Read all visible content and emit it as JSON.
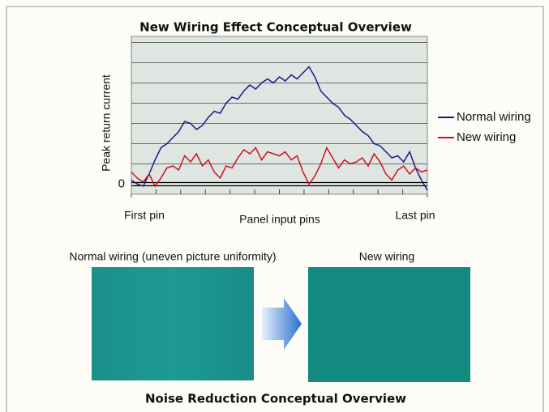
{
  "chart_data": {
    "type": "line",
    "title": "New Wiring Effect Conceptual Overview",
    "y_label": "Peak return current",
    "x_label": "Panel input pins",
    "x": [
      0,
      2,
      4,
      6,
      8,
      10,
      12,
      14,
      16,
      18,
      20,
      22,
      24,
      26,
      28,
      30,
      32,
      34,
      36,
      38,
      40,
      42,
      44,
      46,
      48,
      50,
      52,
      54,
      56,
      58,
      60,
      62,
      64,
      66,
      68,
      70,
      72,
      74,
      76,
      78,
      80,
      82,
      84,
      86,
      88,
      90,
      92,
      94,
      96,
      98,
      100
    ],
    "series": [
      {
        "name": "Normal wiring",
        "color": "#1a1a8c",
        "values": [
          0.2,
          0.0,
          -0.1,
          0.5,
          1.2,
          1.8,
          2.0,
          2.3,
          2.6,
          3.1,
          3.0,
          2.7,
          2.9,
          3.3,
          3.6,
          3.5,
          4.0,
          4.3,
          4.2,
          4.6,
          4.9,
          4.7,
          5.0,
          5.2,
          5.0,
          5.3,
          5.1,
          5.4,
          5.2,
          5.5,
          5.8,
          5.3,
          4.6,
          4.3,
          4.0,
          3.8,
          3.4,
          3.2,
          2.9,
          2.6,
          2.4,
          2.0,
          1.9,
          1.6,
          1.3,
          1.4,
          1.1,
          1.6,
          0.8,
          0.2,
          -0.3
        ]
      },
      {
        "name": "New wiring",
        "color": "#c8141e",
        "values": [
          0.6,
          0.3,
          0.1,
          0.5,
          -0.1,
          0.3,
          0.8,
          0.9,
          0.7,
          1.4,
          1.1,
          1.5,
          0.9,
          1.2,
          0.6,
          0.3,
          0.9,
          0.8,
          1.3,
          1.7,
          1.5,
          1.8,
          1.2,
          1.6,
          1.5,
          1.4,
          1.6,
          1.2,
          1.4,
          0.6,
          0.0,
          0.4,
          1.0,
          1.8,
          1.3,
          0.8,
          1.2,
          1.0,
          1.1,
          1.3,
          0.9,
          1.5,
          1.1,
          0.5,
          0.2,
          0.7,
          0.9,
          0.5,
          0.8,
          0.6,
          0.7
        ]
      }
    ],
    "xlim": [
      0,
      100
    ],
    "xticks": [
      {
        "value": 0,
        "label": "First pin"
      },
      {
        "value": 100,
        "label": "Last pin"
      }
    ],
    "ylim": [
      -0.5,
      7.3
    ],
    "yticks": [
      0
    ],
    "ygrid": [
      1,
      2,
      3,
      4,
      5,
      6,
      7
    ],
    "legend": "right"
  },
  "images": {
    "left_caption": "Normal wiring (uneven picture uniformity)",
    "right_caption": "New wiring",
    "title": "Noise Reduction Conceptual Overview"
  }
}
